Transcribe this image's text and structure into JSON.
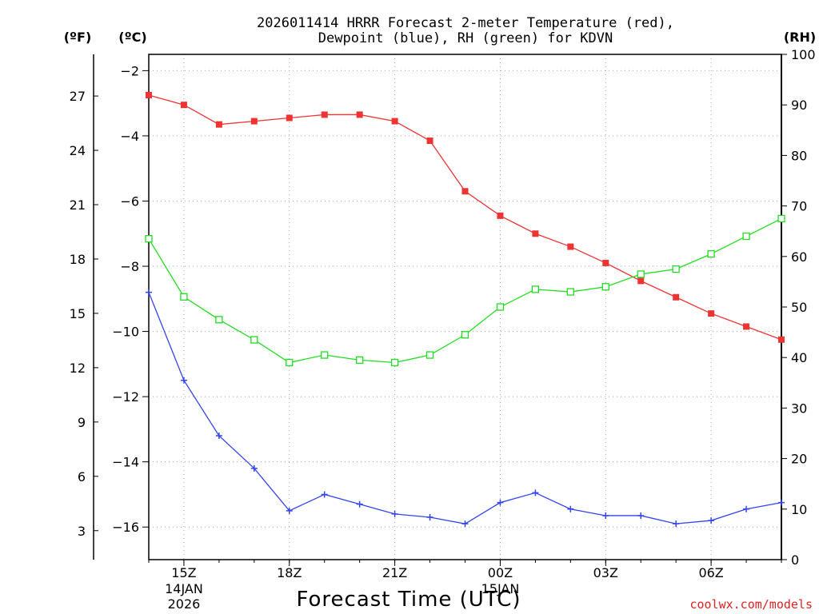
{
  "chart_data": {
    "type": "line",
    "title_line1": "2026011414 HRRR Forecast 2-meter Temperature (red),",
    "title_line2": "Dewpoint (blue), RH (green) for KDVN",
    "units": {
      "fahrenheit": "(ºF)",
      "celsius": "(ºC)",
      "rh": "(RH)"
    },
    "xlabel": "Forecast Time (UTC)",
    "credit": "coolwx.com/models",
    "x_hours": [
      14,
      15,
      16,
      17,
      18,
      19,
      20,
      21,
      22,
      23,
      24,
      25,
      26,
      27,
      28,
      29,
      30,
      31,
      32
    ],
    "x_ticks": [
      {
        "hour": 15,
        "label": "15Z",
        "date1": "14JAN",
        "date2": "2026"
      },
      {
        "hour": 18,
        "label": "18Z"
      },
      {
        "hour": 21,
        "label": "21Z"
      },
      {
        "hour": 24,
        "label": "00Z",
        "date1": "15JAN"
      },
      {
        "hour": 27,
        "label": "03Z"
      },
      {
        "hour": 30,
        "label": "06Z"
      }
    ],
    "celsius_axis": {
      "ylim": [
        -17,
        -1.5
      ],
      "ticks": [
        -2,
        -4,
        -6,
        -8,
        -10,
        -12,
        -14,
        -16
      ]
    },
    "fahrenheit_axis": {
      "ticks": [
        27,
        24,
        21,
        18,
        15,
        12,
        9,
        6,
        3
      ]
    },
    "rh_axis": {
      "ylim": [
        0,
        100
      ],
      "ticks": [
        0,
        10,
        20,
        30,
        40,
        50,
        60,
        70,
        80,
        90,
        100
      ]
    },
    "series": [
      {
        "name": "Temperature",
        "unit": "C",
        "color": "#ee3333",
        "marker": "filled-square",
        "values": [
          -2.75,
          -3.05,
          -3.65,
          -3.55,
          -3.45,
          -3.35,
          -3.35,
          -3.55,
          -4.15,
          -5.7,
          -6.45,
          -7.0,
          -7.4,
          -7.9,
          -8.45,
          -8.95,
          -9.45,
          -9.85,
          -10.25
        ]
      },
      {
        "name": "Dewpoint",
        "unit": "C",
        "color": "#3344ee",
        "marker": "plus",
        "values": [
          -8.8,
          -11.5,
          -13.2,
          -14.2,
          -15.5,
          -15.0,
          -15.3,
          -15.6,
          -15.7,
          -15.9,
          -15.25,
          -14.95,
          -15.45,
          -15.65,
          -15.65,
          -15.9,
          -15.8,
          -15.45,
          -15.25
        ]
      },
      {
        "name": "RH",
        "unit": "%",
        "color": "#22dd22",
        "marker": "open-square",
        "values": [
          63.5,
          52,
          47.5,
          43.5,
          39,
          40.5,
          39.5,
          39,
          40.5,
          44.5,
          50,
          53.5,
          53,
          54,
          56.5,
          57.5,
          60.5,
          64,
          67.5
        ]
      }
    ]
  }
}
